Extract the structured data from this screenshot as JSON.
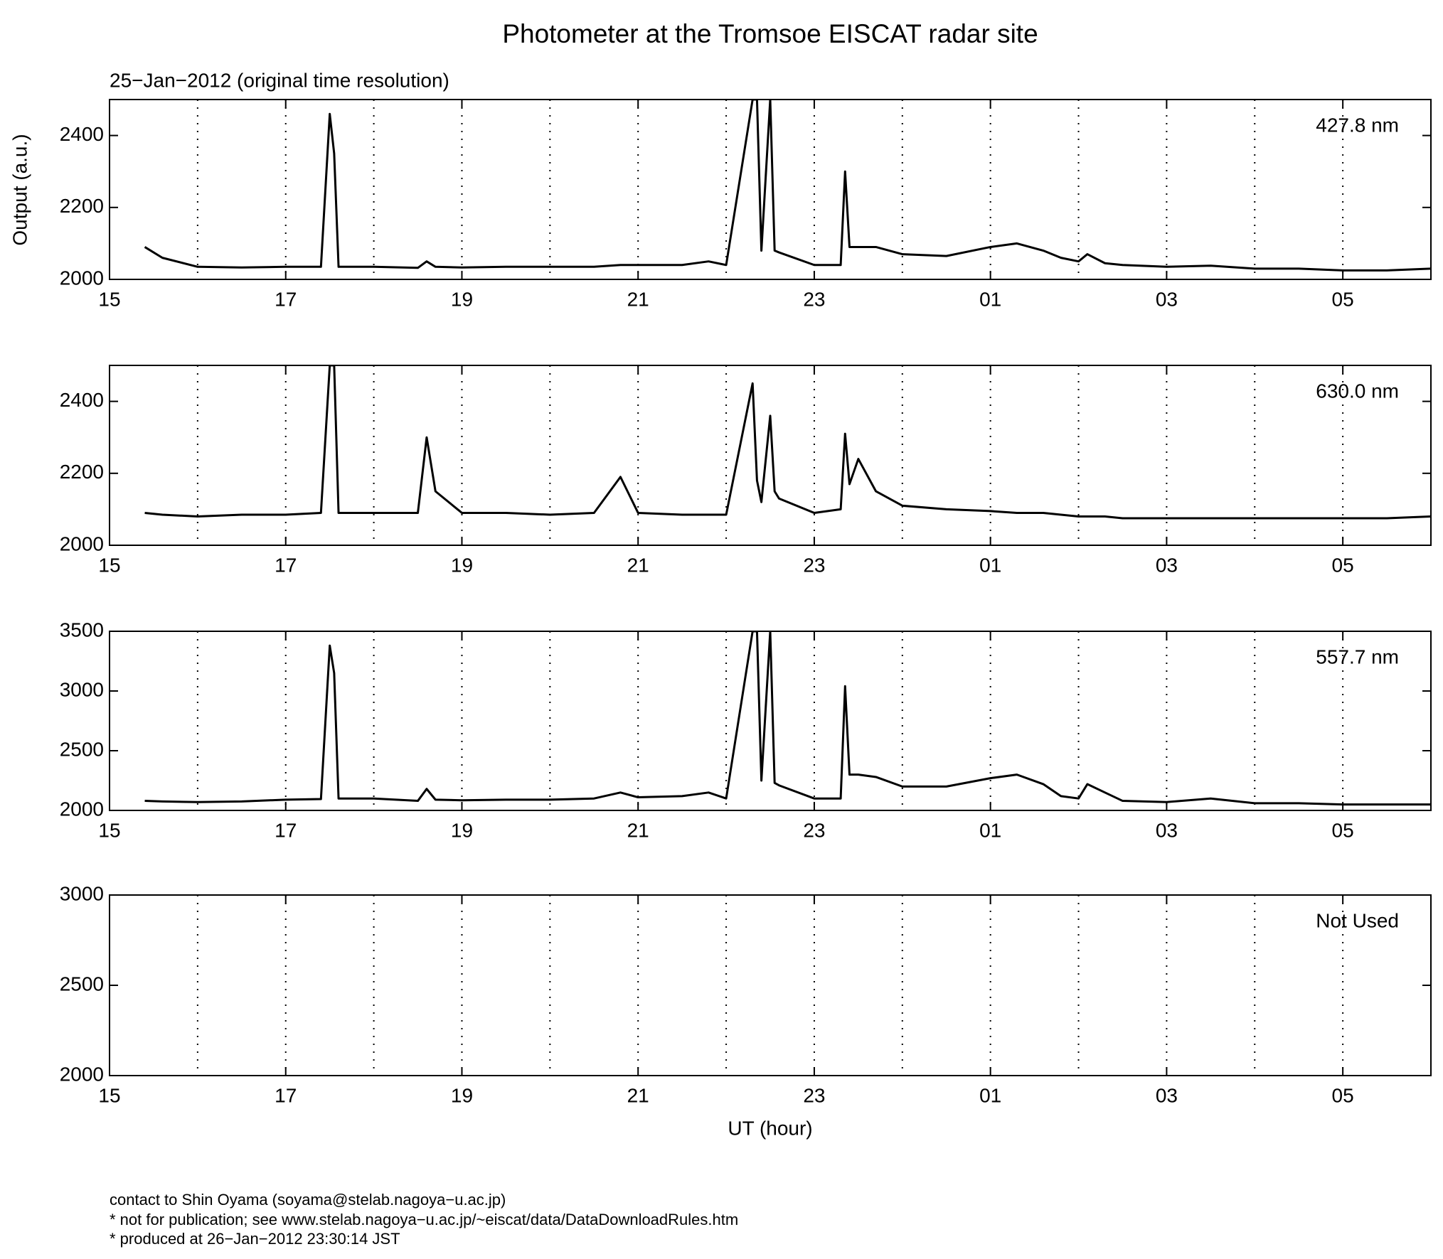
{
  "title": "Photometer at the Tromsoe EISCAT radar site",
  "subtitle": "25−Jan−2012 (original time resolution)",
  "ylabel": "Output (a.u.)",
  "xlabel": "UT (hour)",
  "footer": [
    "contact to Shin Oyama (soyama@stelab.nagoya−u.ac.jp)",
    "* not for publication; see www.stelab.nagoya−u.ac.jp/~eiscat/data/DataDownloadRules.htm",
    "* produced at 26−Jan−2012 23:30:14 JST"
  ],
  "chart_data": [
    {
      "type": "line",
      "title": "427.8 nm",
      "x": [
        15.4,
        15.6,
        16,
        16.5,
        17,
        17.4,
        17.5,
        17.55,
        17.6,
        18,
        18.5,
        18.6,
        18.7,
        19,
        19.5,
        20,
        20.5,
        20.8,
        21,
        21.5,
        21.8,
        22,
        22.3,
        22.35,
        22.4,
        22.5,
        22.55,
        22.6,
        23,
        23.3,
        23.35,
        23.4,
        23.5,
        23.7,
        24,
        24.5,
        25,
        25.3,
        25.6,
        25.8,
        26,
        26.1,
        26.3,
        26.5,
        27,
        27.5,
        28,
        28.5,
        29,
        29.5,
        30
      ],
      "series": [
        {
          "color": "#000000",
          "values": [
            2090,
            2060,
            2035,
            2033,
            2035,
            2035,
            2460,
            2350,
            2035,
            2035,
            2032,
            2050,
            2035,
            2033,
            2035,
            2035,
            2035,
            2040,
            2040,
            2040,
            2050,
            2040,
            2500,
            2500,
            2080,
            2500,
            2080,
            2075,
            2040,
            2040,
            2300,
            2090,
            2090,
            2090,
            2070,
            2065,
            2090,
            2100,
            2080,
            2060,
            2050,
            2070,
            2045,
            2040,
            2035,
            2038,
            2030,
            2030,
            2025,
            2025,
            2030
          ]
        }
      ],
      "xlim": [
        15,
        30
      ],
      "xticks": [
        15,
        17,
        19,
        21,
        23,
        {
          "value": 25,
          "label": "01"
        },
        {
          "value": 27,
          "label": "03"
        },
        {
          "value": 29,
          "label": "05"
        }
      ],
      "xminor": [
        16,
        18,
        20,
        22,
        24,
        26,
        28
      ],
      "ylim": [
        2000,
        2500
      ],
      "yticks": [
        2000,
        2200,
        2400
      ],
      "grid": "dotted"
    },
    {
      "type": "line",
      "title": "630.0 nm",
      "x": [
        15.4,
        15.6,
        16,
        16.5,
        17,
        17.4,
        17.5,
        17.55,
        17.6,
        18,
        18.5,
        18.6,
        18.7,
        19,
        19.5,
        20,
        20.5,
        20.8,
        21,
        21.5,
        21.8,
        22,
        22.3,
        22.35,
        22.4,
        22.5,
        22.55,
        22.6,
        23,
        23.3,
        23.35,
        23.4,
        23.5,
        23.7,
        24,
        24.5,
        25,
        25.3,
        25.6,
        25.8,
        26,
        26.1,
        26.3,
        26.5,
        27,
        27.5,
        28,
        28.5,
        29,
        29.5,
        30
      ],
      "series": [
        {
          "color": "#000000",
          "values": [
            2090,
            2085,
            2080,
            2085,
            2085,
            2090,
            2500,
            2500,
            2090,
            2090,
            2090,
            2300,
            2150,
            2090,
            2090,
            2085,
            2090,
            2190,
            2090,
            2085,
            2085,
            2085,
            2450,
            2180,
            2120,
            2360,
            2150,
            2130,
            2090,
            2100,
            2310,
            2170,
            2240,
            2150,
            2110,
            2100,
            2095,
            2090,
            2090,
            2085,
            2080,
            2080,
            2080,
            2075,
            2075,
            2075,
            2075,
            2075,
            2075,
            2075,
            2080
          ]
        }
      ],
      "xlim": [
        15,
        30
      ],
      "xticks": [
        15,
        17,
        19,
        21,
        23,
        {
          "value": 25,
          "label": "01"
        },
        {
          "value": 27,
          "label": "03"
        },
        {
          "value": 29,
          "label": "05"
        }
      ],
      "xminor": [
        16,
        18,
        20,
        22,
        24,
        26,
        28
      ],
      "ylim": [
        2000,
        2500
      ],
      "yticks": [
        2000,
        2200,
        2400
      ],
      "grid": "dotted"
    },
    {
      "type": "line",
      "title": "557.7 nm",
      "x": [
        15.4,
        15.6,
        16,
        16.5,
        17,
        17.4,
        17.5,
        17.55,
        17.6,
        18,
        18.5,
        18.6,
        18.7,
        19,
        19.5,
        20,
        20.5,
        20.8,
        21,
        21.5,
        21.8,
        22,
        22.3,
        22.35,
        22.4,
        22.5,
        22.55,
        22.6,
        23,
        23.3,
        23.35,
        23.4,
        23.5,
        23.7,
        24,
        24.5,
        25,
        25.3,
        25.6,
        25.8,
        26,
        26.1,
        26.3,
        26.5,
        27,
        27.5,
        28,
        28.5,
        29,
        29.5,
        30
      ],
      "series": [
        {
          "color": "#000000",
          "values": [
            2080,
            2075,
            2070,
            2075,
            2090,
            2095,
            3380,
            3150,
            2100,
            2100,
            2080,
            2180,
            2090,
            2085,
            2090,
            2090,
            2100,
            2150,
            2110,
            2120,
            2150,
            2100,
            3500,
            3500,
            2250,
            3500,
            2230,
            2210,
            2100,
            2100,
            3040,
            2300,
            2300,
            2280,
            2200,
            2200,
            2270,
            2300,
            2220,
            2120,
            2100,
            2220,
            2150,
            2080,
            2070,
            2100,
            2060,
            2060,
            2050,
            2050,
            2050
          ]
        }
      ],
      "xlim": [
        15,
        30
      ],
      "xticks": [
        15,
        17,
        19,
        21,
        23,
        {
          "value": 25,
          "label": "01"
        },
        {
          "value": 27,
          "label": "03"
        },
        {
          "value": 29,
          "label": "05"
        }
      ],
      "xminor": [
        16,
        18,
        20,
        22,
        24,
        26,
        28
      ],
      "ylim": [
        2000,
        3500
      ],
      "yticks": [
        2000,
        2500,
        3000,
        3500
      ],
      "grid": "dotted"
    },
    {
      "type": "line",
      "title": "Not Used",
      "x": [],
      "series": [],
      "xlim": [
        15,
        30
      ],
      "xticks": [
        15,
        17,
        19,
        21,
        23,
        {
          "value": 25,
          "label": "01"
        },
        {
          "value": 27,
          "label": "03"
        },
        {
          "value": 29,
          "label": "05"
        }
      ],
      "xminor": [
        16,
        18,
        20,
        22,
        24,
        26,
        28
      ],
      "ylim": [
        2000,
        3000
      ],
      "yticks": [
        2000,
        2500,
        3000
      ],
      "grid": "dotted"
    }
  ]
}
